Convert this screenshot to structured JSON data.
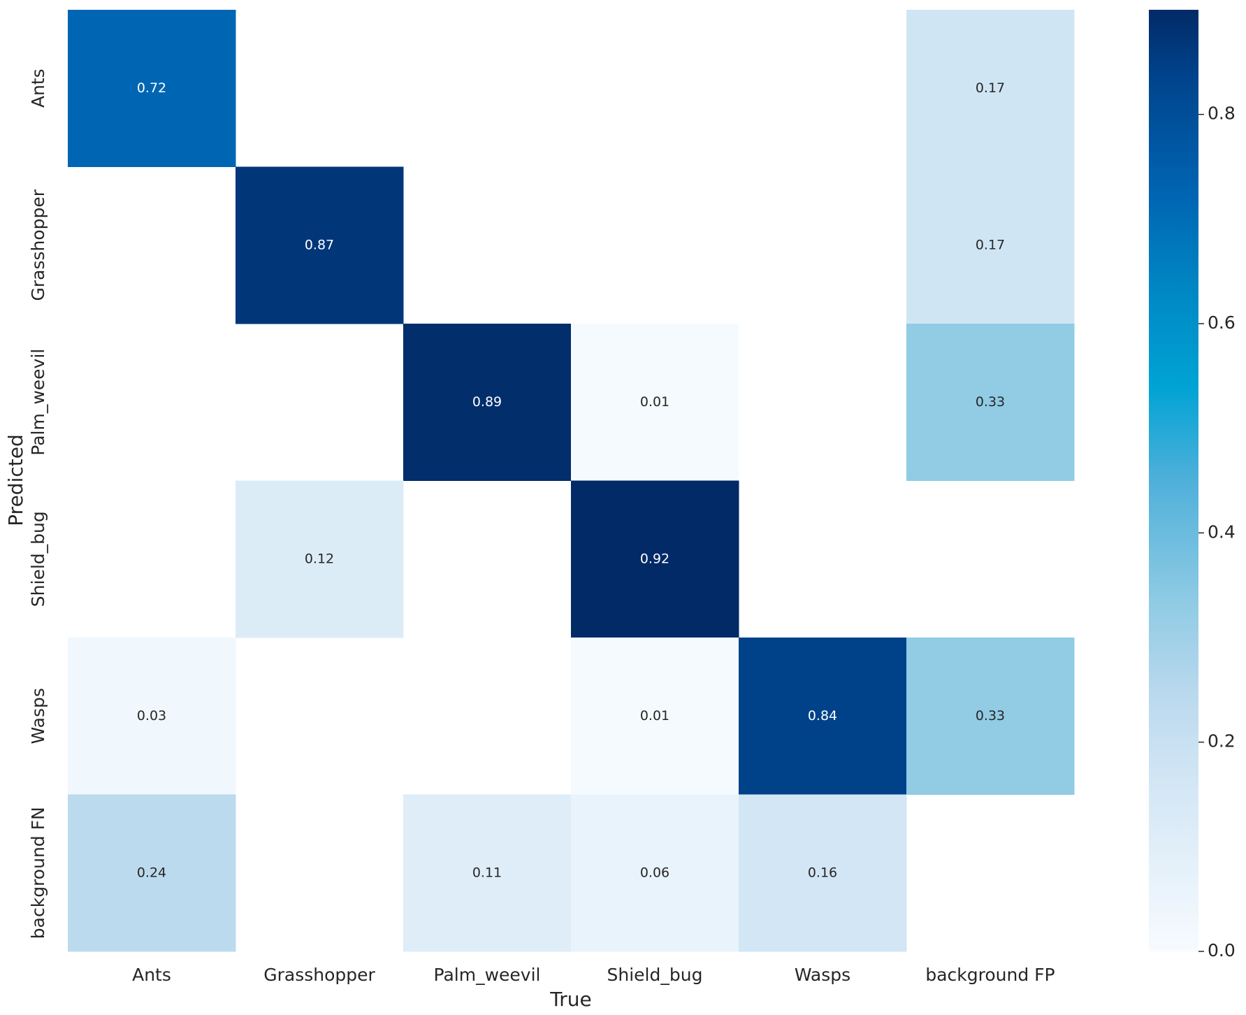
{
  "chart_data": {
    "type": "heatmap",
    "x_label": "True",
    "y_label": "Predicted",
    "columns": [
      "Ants",
      "Grasshopper",
      "Palm_weevil",
      "Shield_bug",
      "Wasps",
      "background FP"
    ],
    "rows": [
      "Ants",
      "Grasshopper",
      "Palm_weevil",
      "Shield_bug",
      "Wasps",
      "background FN"
    ],
    "values": [
      [
        0.72,
        null,
        null,
        null,
        null,
        0.17
      ],
      [
        null,
        0.87,
        null,
        null,
        null,
        0.17
      ],
      [
        null,
        null,
        0.89,
        0.01,
        null,
        0.33
      ],
      [
        null,
        0.12,
        null,
        0.92,
        null,
        null
      ],
      [
        0.03,
        null,
        null,
        0.01,
        0.84,
        0.33
      ],
      [
        0.24,
        null,
        0.11,
        0.06,
        0.16,
        null
      ]
    ],
    "colormap": "Blues",
    "clim": [
      0,
      0.9
    ],
    "cticks": [
      {
        "value": 0,
        "label": "0.0"
      },
      0.2,
      0.4,
      0.6,
      0.8
    ]
  }
}
